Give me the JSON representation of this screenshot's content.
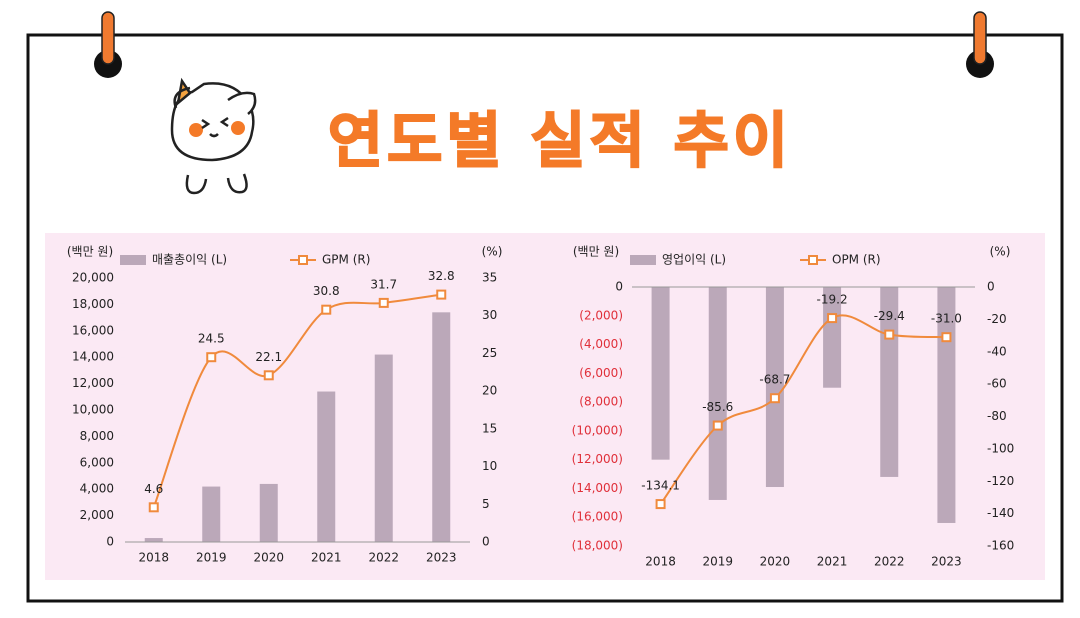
{
  "title": "연도별 실적 추이",
  "chart_data": [
    {
      "type": "combo",
      "y_label": "(백만 원)",
      "y2_label": "(%)",
      "categories": [
        "2018",
        "2019",
        "2020",
        "2021",
        "2022",
        "2023"
      ],
      "series": [
        {
          "name": "매출총이익 (L)",
          "type": "bar",
          "color": "#bba8b9",
          "values": [
            300,
            4200,
            4400,
            11400,
            14200,
            17400
          ]
        },
        {
          "name": "GPM (R)",
          "type": "line",
          "axis": "y2",
          "color": "#f08a3c",
          "values": [
            4.6,
            24.5,
            22.1,
            30.8,
            31.7,
            32.8
          ]
        }
      ],
      "ylim": [
        0,
        20000
      ],
      "yticks": [
        0,
        {
          "value": 2000,
          "label": "2,000"
        },
        {
          "value": 4000,
          "label": "4,000"
        },
        {
          "value": 6000,
          "label": "6,000"
        },
        {
          "value": 8000,
          "label": "8,000"
        },
        {
          "value": 10000,
          "label": "10,000"
        },
        {
          "value": 12000,
          "label": "12,000"
        },
        {
          "value": 14000,
          "label": "14,000"
        },
        {
          "value": 16000,
          "label": "16,000"
        },
        {
          "value": 18000,
          "label": "18,000"
        },
        {
          "value": 20000,
          "label": "20,000"
        }
      ],
      "y2lim": [
        0,
        35
      ],
      "y2ticks": [
        0,
        5,
        10,
        15,
        20,
        25,
        30,
        35
      ],
      "legend": "top"
    },
    {
      "type": "combo",
      "y_label": "(백만 원)",
      "y2_label": "(%)",
      "categories": [
        "2018",
        "2019",
        "2020",
        "2021",
        "2022",
        "2023"
      ],
      "series": [
        {
          "name": "영업이익 (L)",
          "type": "bar",
          "color": "#bba8b9",
          "values": [
            -12000,
            -14800,
            -13900,
            -7000,
            -13200,
            -16400
          ]
        },
        {
          "name": "OPM (R)",
          "type": "line",
          "axis": "y2",
          "color": "#f08a3c",
          "values": [
            -134.1,
            -85.6,
            -68.7,
            -19.2,
            -29.4,
            -31.0
          ],
          "value_labels": [
            "-134.1",
            "-85.6",
            "-68.7",
            "-19.2",
            "-29.4",
            "-31.0"
          ]
        }
      ],
      "ylim": [
        -18000,
        0
      ],
      "yticks": [
        0,
        {
          "value": -2000,
          "label": "(2,000)"
        },
        {
          "value": -4000,
          "label": "(4,000)"
        },
        {
          "value": -6000,
          "label": "(6,000)"
        },
        {
          "value": -8000,
          "label": "(8,000)"
        },
        {
          "value": -10000,
          "label": "(10,000)"
        },
        {
          "value": -12000,
          "label": "(12,000)"
        },
        {
          "value": -14000,
          "label": "(14,000)"
        },
        {
          "value": -16000,
          "label": "(16,000)"
        },
        {
          "value": -18000,
          "label": "(18,000)"
        }
      ],
      "negative_tick_color": "#e0303a",
      "y2lim": [
        -160,
        0
      ],
      "y2ticks": [
        0,
        -20,
        -40,
        -60,
        -80,
        -100,
        -120,
        -140,
        -160
      ],
      "legend": "top"
    }
  ]
}
